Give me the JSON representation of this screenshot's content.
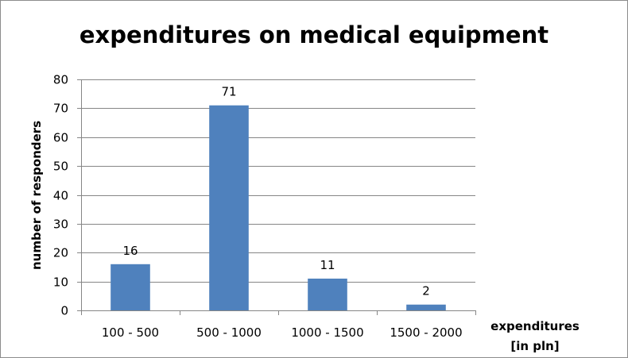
{
  "chart_data": {
    "type": "bar",
    "title": "expenditures on medical equipment",
    "xlabel_lines": [
      "expenditures",
      "[in pln]"
    ],
    "ylabel": "number of responders",
    "categories": [
      "100 - 500",
      "500 - 1000",
      "1000 - 1500",
      "1500 - 2000"
    ],
    "values": [
      16,
      71,
      11,
      2
    ],
    "data_labels": [
      "16",
      "71",
      "11",
      "2"
    ],
    "ylim": [
      0,
      80
    ],
    "yticks": [
      0,
      10,
      20,
      30,
      40,
      50,
      60,
      70,
      80
    ],
    "grid": true,
    "legend": "none",
    "bar_color": "#4f81bd",
    "grid_color": "#868686"
  }
}
